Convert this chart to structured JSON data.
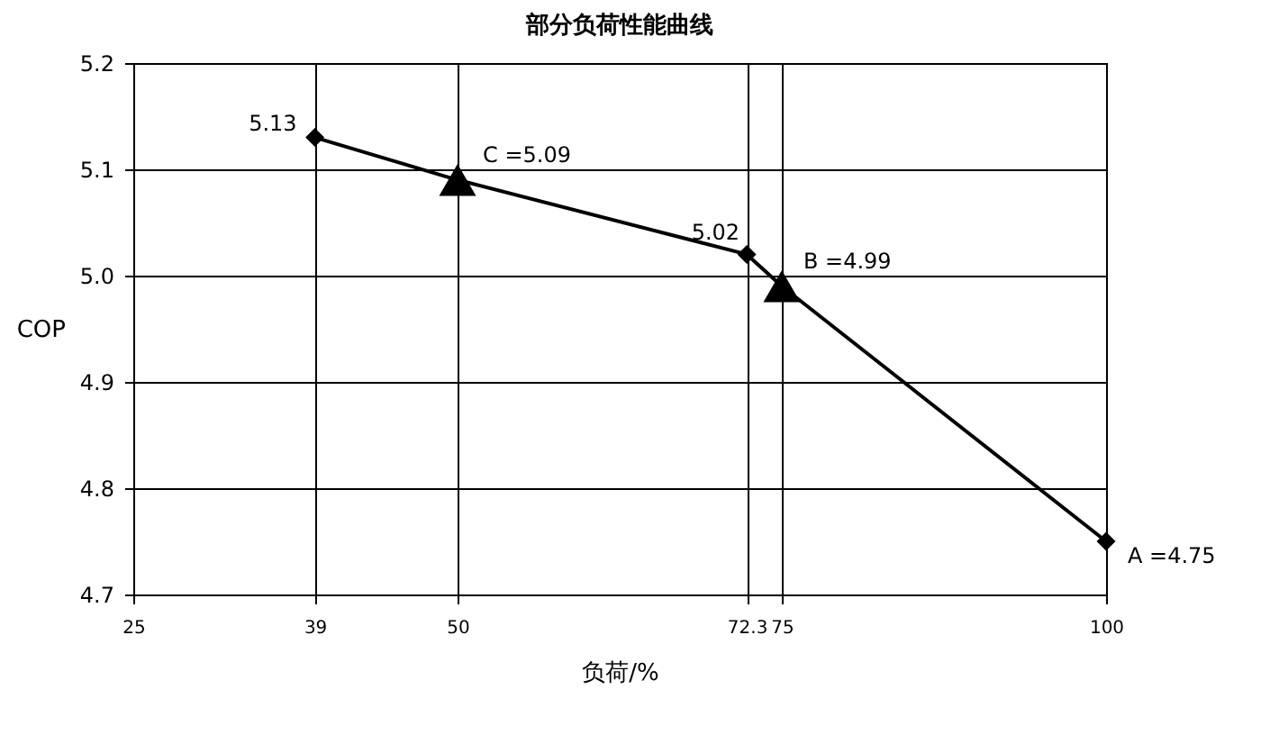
{
  "chart_data": {
    "type": "line",
    "title": "部分负荷性能曲线",
    "xlabel": "负荷/%",
    "ylabel": "COP",
    "series": [
      {
        "type": "line",
        "color": "#000000",
        "marker": "none",
        "x": [
          39,
          50,
          72.3,
          75,
          100
        ],
        "values": [
          5.13,
          5.09,
          5.02,
          4.99,
          4.75
        ]
      },
      {
        "type": "scatter",
        "color": "#000000",
        "marker": "diamond",
        "x": [
          39,
          72.3,
          100
        ],
        "values": [
          5.13,
          5.02,
          4.75
        ]
      },
      {
        "type": "scatter",
        "color": "#000000",
        "marker": "triangle",
        "x": [
          50,
          75
        ],
        "values": [
          5.09,
          4.99
        ]
      }
    ],
    "xlim": [
      25,
      100
    ],
    "xticks": [
      25,
      39,
      50,
      72.3,
      75,
      100
    ],
    "ylim": [
      4.7,
      5.2
    ],
    "yticks": [
      4.7,
      4.8,
      4.9,
      {
        "value": 5,
        "label": "5.0"
      },
      5.1,
      5.2
    ],
    "grid": true,
    "annotations": [
      {
        "text": "5.13",
        "x": 39,
        "y": 5.13
      },
      {
        "text": "C =5.09",
        "x": 50,
        "y": 5.09
      },
      {
        "text": "5.02",
        "x": 72.3,
        "y": 5.02
      },
      {
        "text": "B =4.99",
        "x": 75,
        "y": 4.99
      },
      {
        "text": "A =4.75",
        "x": 100,
        "y": 4.75
      }
    ]
  }
}
